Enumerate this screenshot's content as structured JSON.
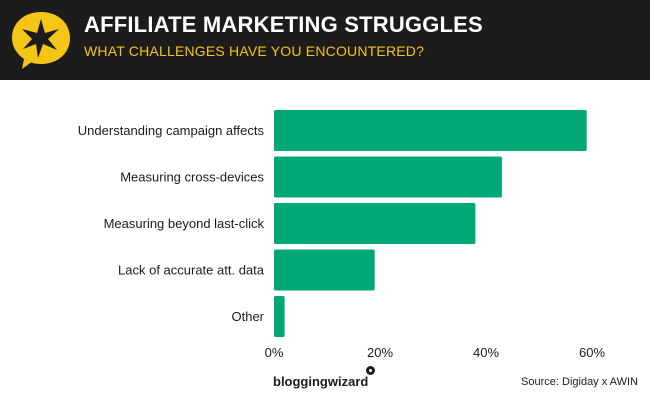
{
  "header": {
    "title": "AFFILIATE MARKETING STRUGGLES",
    "subtitle": "WHAT CHALLENGES HAVE YOU ENCOUNTERED?",
    "badge_icon": "star-speech-bubble-icon",
    "badge_color": "#f5c518"
  },
  "chart_data": {
    "type": "bar",
    "orientation": "horizontal",
    "categories": [
      "Understanding campaign affects",
      "Measuring cross-devices",
      "Measuring beyond last-click",
      "Lack of accurate att. data",
      "Other"
    ],
    "values": [
      59,
      43,
      38,
      19,
      2
    ],
    "xlim": [
      0,
      60
    ],
    "xticks": [
      "0%",
      "20%",
      "40%",
      "60%"
    ],
    "grid": false,
    "bar_color": "#00a878"
  },
  "footer": {
    "logo_text": "bloggingwizard",
    "source": "Source: Digiday x AWIN"
  }
}
